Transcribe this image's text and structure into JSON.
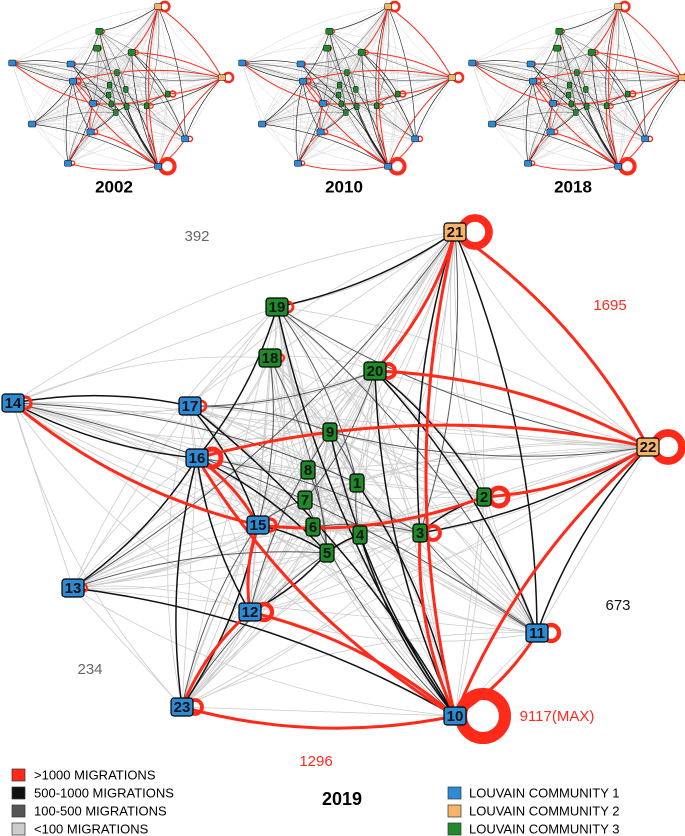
{
  "thumbnails": [
    {
      "title": "2002"
    },
    {
      "title": "2010"
    },
    {
      "title": "2018"
    }
  ],
  "main": {
    "title": "2019",
    "nodes": [
      {
        "label": "1",
        "community": 2
      },
      {
        "label": "2",
        "community": 2
      },
      {
        "label": "3",
        "community": 2
      },
      {
        "label": "4",
        "community": 2
      },
      {
        "label": "5",
        "community": 2
      },
      {
        "label": "6",
        "community": 2
      },
      {
        "label": "7",
        "community": 2
      },
      {
        "label": "8",
        "community": 2
      },
      {
        "label": "9",
        "community": 2
      },
      {
        "label": "10",
        "community": 0
      },
      {
        "label": "11",
        "community": 0
      },
      {
        "label": "12",
        "community": 0
      },
      {
        "label": "13",
        "community": 0
      },
      {
        "label": "14",
        "community": 0
      },
      {
        "label": "15",
        "community": 0
      },
      {
        "label": "16",
        "community": 0
      },
      {
        "label": "17",
        "community": 0
      },
      {
        "label": "18",
        "community": 2
      },
      {
        "label": "19",
        "community": 2
      },
      {
        "label": "20",
        "community": 2
      },
      {
        "label": "21",
        "community": 1
      },
      {
        "label": "22",
        "community": 1
      },
      {
        "label": "23",
        "community": 0
      }
    ],
    "edge_labels": [
      {
        "label": "392",
        "color": "#666666"
      },
      {
        "label": "1695",
        "color": "#ff2a1a"
      },
      {
        "label": "673",
        "color": "#111111"
      },
      {
        "label": "234",
        "color": "#666666"
      },
      {
        "label": "1296",
        "color": "#ff2a1a"
      },
      {
        "label": "9117(MAX)",
        "color": "#ff2a1a"
      }
    ]
  },
  "legend": {
    "weights": [
      {
        "label": ">1000 MIGRATIONS",
        "color": "#ff2a1a"
      },
      {
        "label": "500-1000 MIGRATIONS",
        "color": "#111111"
      },
      {
        "label": "100-500 MIGRATIONS",
        "color": "#555555"
      },
      {
        "label": "<100 MIGRATIONS",
        "color": "#cccccc"
      }
    ],
    "communities": [
      {
        "label": "LOUVAIN COMMUNITY 1",
        "color": "#2c8bd4"
      },
      {
        "label": "LOUVAIN COMMUNITY 2",
        "color": "#f5b46a"
      },
      {
        "label": "LOUVAIN COMMUNITY 3",
        "color": "#1e8a2a"
      }
    ]
  }
}
